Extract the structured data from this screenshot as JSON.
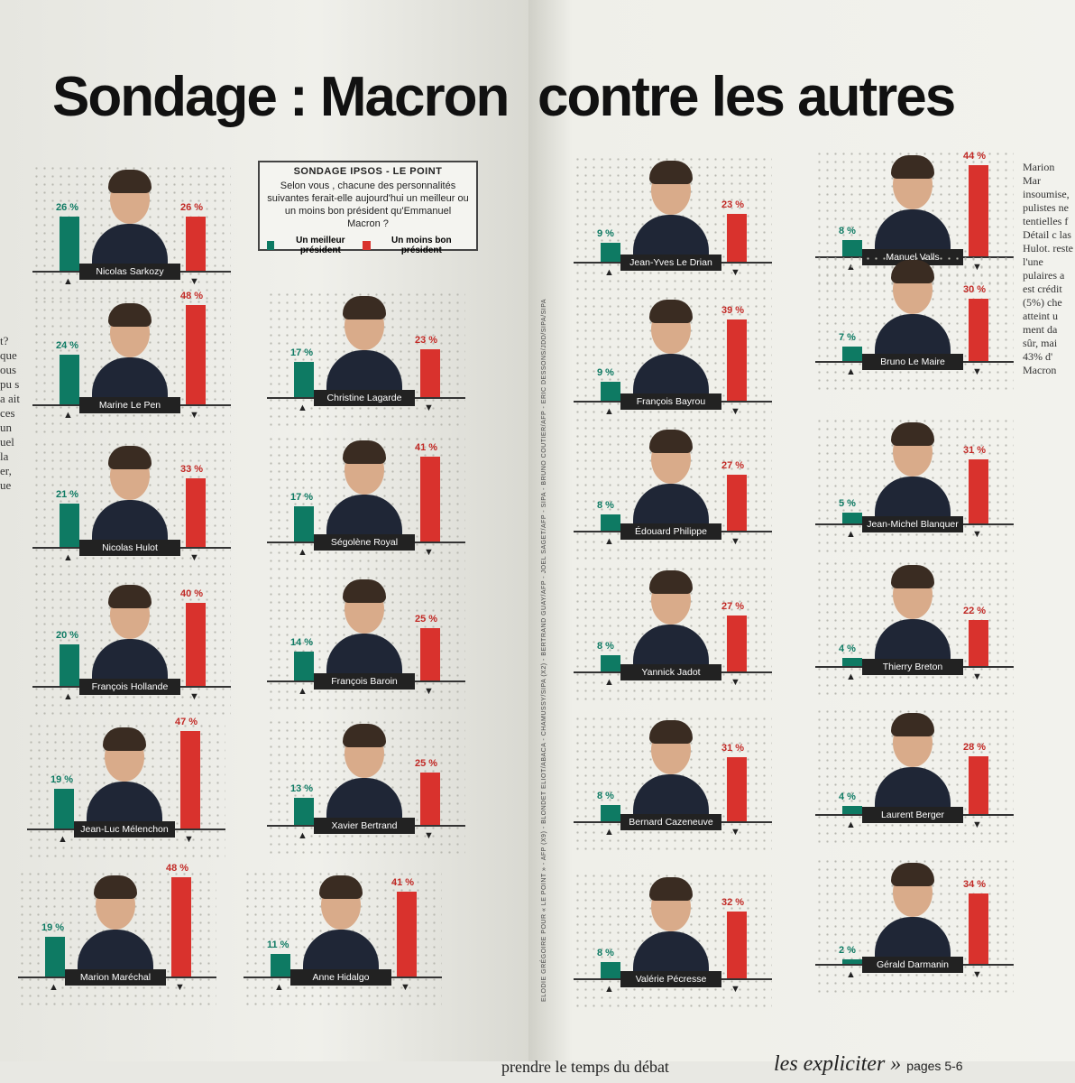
{
  "headline": {
    "left": "Sondage : Macron",
    "right": "contre les autres"
  },
  "legend": {
    "title": "SONDAGE IPSOS - LE POINT",
    "question": "Selon vous , chacune des personnalités suivantes ferait-elle aujourd'hui un meilleur ou un moins bon président qu'Emmanuel Macron ?",
    "better_label": "Un meilleur président",
    "worse_label": "Un moins bon président"
  },
  "colors": {
    "better": "#0e7a63",
    "worse": "#d9322d"
  },
  "chart_data": {
    "type": "bar",
    "title": "Sondage : Macron contre les autres",
    "series_names": [
      "Un meilleur président",
      "Un moins bon président"
    ],
    "unit": "%",
    "ylim": [
      0,
      50
    ],
    "people": [
      {
        "name": "Nicolas Sarkozy",
        "better": 26,
        "worse": 26
      },
      {
        "name": "Marine Le Pen",
        "better": 24,
        "worse": 48
      },
      {
        "name": "Christine Lagarde",
        "better": 17,
        "worse": 23
      },
      {
        "name": "Nicolas Hulot",
        "better": 21,
        "worse": 33
      },
      {
        "name": "Ségolène Royal",
        "better": 17,
        "worse": 41
      },
      {
        "name": "François Hollande",
        "better": 20,
        "worse": 40
      },
      {
        "name": "François Baroin",
        "better": 14,
        "worse": 25
      },
      {
        "name": "Jean-Luc Mélenchon",
        "better": 19,
        "worse": 47
      },
      {
        "name": "Xavier Bertrand",
        "better": 13,
        "worse": 25
      },
      {
        "name": "Marion Maréchal",
        "better": 19,
        "worse": 48
      },
      {
        "name": "Anne Hidalgo",
        "better": 11,
        "worse": 41
      },
      {
        "name": "Jean-Yves Le Drian",
        "better": 9,
        "worse": 23
      },
      {
        "name": "Manuel Valls",
        "better": 8,
        "worse": 44
      },
      {
        "name": "François Bayrou",
        "better": 9,
        "worse": 39
      },
      {
        "name": "Bruno Le Maire",
        "better": 7,
        "worse": 30
      },
      {
        "name": "Édouard Philippe",
        "better": 8,
        "worse": 27
      },
      {
        "name": "Jean-Michel Blanquer",
        "better": 5,
        "worse": 31
      },
      {
        "name": "Yannick Jadot",
        "better": 8,
        "worse": 27
      },
      {
        "name": "Thierry Breton",
        "better": 4,
        "worse": 22
      },
      {
        "name": "Bernard Cazeneuve",
        "better": 8,
        "worse": 31
      },
      {
        "name": "Laurent Berger",
        "better": 4,
        "worse": 28
      },
      {
        "name": "Valérie Pécresse",
        "better": 8,
        "worse": 32
      },
      {
        "name": "Gérald Darmanin",
        "better": 2,
        "worse": 34
      }
    ]
  },
  "credit": "ELODIE GRÉGOIRE POUR « LE POINT » - AFP (X9) - BLONDET ELIOT/ABACA - CHAMUSSY/SIPA (X2) - BERTRAND GUAY/AFP - JOEL SAGET/AFP - SIPA - BRUNO COUTIER/AFP - ERIC DESSONS/JDD/SIPA/SIPA",
  "footer": {
    "left": "prendre le temps du débat",
    "right": "les expliciter »",
    "pages": "pages 5-6"
  },
  "side_text": "Marion Mar insoumise, pulistes ne tentielles f Détail c las Hulot. reste l'une pulaires a est crédit (5%) che atteint u ment da sûr, mai 43% d' Macron",
  "gutter_text": "t? que ous pu s a ait ces un uel la er, ue"
}
